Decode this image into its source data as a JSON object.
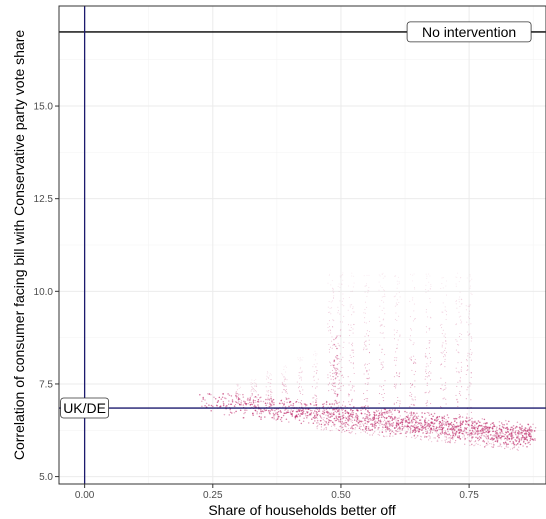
{
  "chart_data": {
    "type": "scatter",
    "title": "",
    "xlabel": "Share of households better off",
    "ylabel": "Correlation of consumer facing bill with Conservative party vote share",
    "xlim": [
      -0.05,
      0.9
    ],
    "ylim": [
      4.8,
      17.7
    ],
    "x_ticks": [
      0.0,
      0.25,
      0.5,
      0.75
    ],
    "x_tick_labels": [
      "0.00",
      "0.25",
      "0.50",
      "0.75"
    ],
    "y_ticks": [
      5.0,
      7.5,
      10.0,
      12.5,
      15.0
    ],
    "y_tick_labels": [
      "5.0",
      "7.5",
      "10.0",
      "12.5",
      "15.0"
    ],
    "grid": true,
    "point_color": "#c0306e",
    "reference_lines": [
      {
        "orientation": "horizontal",
        "y": 17.0,
        "color": "#000000",
        "label": "No intervention",
        "label_x": 0.75
      },
      {
        "orientation": "horizontal",
        "y": 6.85,
        "color": "#1c1a6e",
        "label": "UK/DE",
        "label_x": 0.0
      },
      {
        "orientation": "vertical",
        "x": 0.0,
        "color": "#1c1a6e"
      }
    ],
    "cloud": {
      "description_free": true,
      "x_range": [
        0.22,
        0.88
      ],
      "y_range": [
        5.9,
        10.5
      ],
      "dense_band": {
        "x_start": 0.22,
        "y_start": 7.05,
        "x_end": 0.88,
        "y_end": 6.1
      },
      "vertical_streaks_x": [
        0.3,
        0.33,
        0.36,
        0.39,
        0.42,
        0.45,
        0.48,
        0.5,
        0.52,
        0.55,
        0.58,
        0.61,
        0.64,
        0.67,
        0.7,
        0.73,
        0.75
      ]
    }
  }
}
